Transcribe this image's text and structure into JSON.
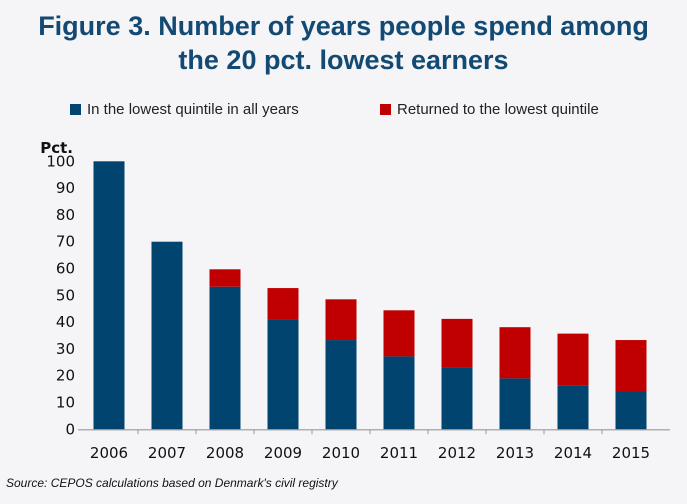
{
  "chart_data": {
    "type": "bar",
    "stacked": true,
    "title_line1": "Figure 3. Number of years people spend among",
    "title_line2": "the 20 pct. lowest earners",
    "ylabel": "Pct.",
    "xlabel": "",
    "ylim": [
      0,
      100
    ],
    "yticks": [
      0,
      10,
      20,
      30,
      40,
      50,
      60,
      70,
      80,
      90,
      100
    ],
    "categories": [
      "2006",
      "2007",
      "2008",
      "2009",
      "2010",
      "2011",
      "2012",
      "2013",
      "2014",
      "2015"
    ],
    "series": [
      {
        "name": "In the lowest quintile in all years",
        "color": "#00446f",
        "values": [
          100,
          70,
          53.2,
          40.8,
          33.3,
          27.2,
          22.9,
          19.0,
          16.3,
          14.1
        ]
      },
      {
        "name": "Returned to the lowest quintile",
        "color": "#c00000",
        "values": [
          0,
          0,
          6.5,
          11.9,
          15.2,
          17.2,
          18.3,
          19.1,
          19.4,
          19.2
        ]
      }
    ],
    "legend": "top",
    "grid": false,
    "source": "Source: CEPOS calculations based on Denmark's civil registry"
  }
}
